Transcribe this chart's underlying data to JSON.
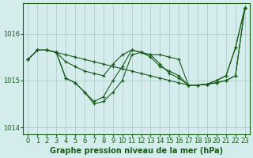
{
  "title": "Graphe pression niveau de la mer (hPa)",
  "background_color": "#d4ecec",
  "grid_color": "#b0cccc",
  "line_color": "#1a5c1a",
  "xlim": [
    -0.5,
    23.5
  ],
  "ylim": [
    1013.85,
    1016.65
  ],
  "yticks": [
    1014,
    1015,
    1016
  ],
  "xticks": [
    0,
    1,
    2,
    3,
    4,
    5,
    6,
    7,
    8,
    9,
    10,
    11,
    12,
    13,
    14,
    15,
    16,
    17,
    18,
    19,
    20,
    21,
    22,
    23
  ],
  "series": [
    {
      "x": [
        0,
        1,
        2,
        3,
        4,
        5,
        6,
        7,
        8,
        9,
        10,
        11,
        12,
        13,
        14,
        15,
        16,
        17,
        18,
        19,
        20,
        21,
        22,
        23
      ],
      "y": [
        1015.45,
        1015.65,
        1015.65,
        1015.6,
        1015.55,
        1015.5,
        1015.45,
        1015.4,
        1015.35,
        1015.3,
        1015.25,
        1015.2,
        1015.15,
        1015.1,
        1015.05,
        1015.0,
        1014.95,
        1014.9,
        1014.9,
        1014.92,
        1014.95,
        1015.0,
        1015.1,
        1016.55
      ],
      "marker": true
    },
    {
      "x": [
        0,
        1,
        2,
        3,
        4,
        5,
        6,
        7,
        8,
        9,
        10,
        11,
        12,
        13,
        14,
        15,
        16,
        17,
        18,
        19,
        20,
        21,
        22,
        23
      ],
      "y": [
        1015.45,
        1015.65,
        1015.65,
        1015.6,
        1015.4,
        1015.3,
        1015.2,
        1015.15,
        1015.1,
        1015.35,
        1015.55,
        1015.65,
        1015.6,
        1015.5,
        1015.3,
        1015.2,
        1015.1,
        1014.9,
        1014.9,
        1014.92,
        1014.95,
        1015.0,
        1015.1,
        1016.55
      ],
      "marker": true
    },
    {
      "x": [
        0,
        1,
        2,
        3,
        4,
        5,
        6,
        7,
        8,
        9,
        10,
        11,
        12,
        13,
        14,
        15,
        16,
        17,
        18,
        19,
        20,
        21,
        22,
        23
      ],
      "y": [
        1015.45,
        1015.65,
        1015.65,
        1015.6,
        1015.05,
        1014.95,
        1014.75,
        1014.55,
        1014.65,
        1015.0,
        1015.3,
        1015.65,
        1015.6,
        1015.55,
        1015.55,
        1015.5,
        1015.45,
        1014.9,
        1014.9,
        1014.92,
        1015.0,
        1015.1,
        1015.7,
        1016.55
      ],
      "marker": true
    },
    {
      "x": [
        0,
        1,
        2,
        3,
        4,
        5,
        6,
        7,
        8,
        9,
        10,
        11,
        12,
        13,
        14,
        15,
        16,
        17,
        18,
        19,
        20,
        21,
        22,
        23
      ],
      "y": [
        1015.45,
        1015.65,
        1015.65,
        1015.6,
        1015.05,
        1014.95,
        1014.75,
        1014.5,
        1014.55,
        1014.75,
        1015.0,
        1015.55,
        1015.6,
        1015.55,
        1015.35,
        1015.15,
        1015.05,
        1014.9,
        1014.9,
        1014.92,
        1015.0,
        1015.1,
        1015.7,
        1016.55
      ],
      "marker": true
    }
  ],
  "xlabel_fontsize": 5.5,
  "ylabel_fontsize": 6,
  "title_fontsize": 7,
  "tick_fontsize": 6
}
